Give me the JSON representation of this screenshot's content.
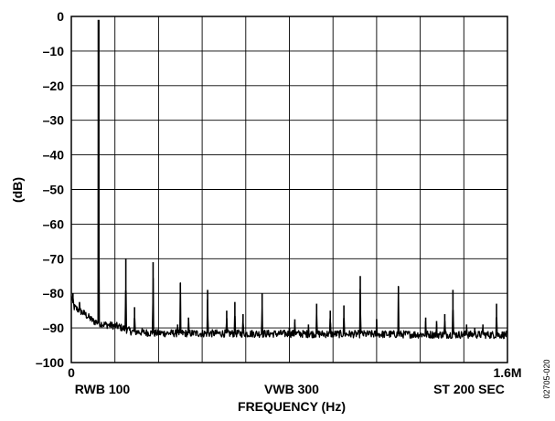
{
  "chart_data": {
    "type": "line",
    "title": "",
    "xlabel": "FREQUENCY (Hz)",
    "ylabel": "(dB)",
    "xlim": [
      0,
      1.6
    ],
    "ylim": [
      -100,
      0
    ],
    "grid": true,
    "y_ticks": [
      0,
      -10,
      -20,
      -30,
      -40,
      -50,
      -60,
      -70,
      -80,
      -90,
      -100
    ],
    "y_tick_labels": [
      "0",
      "–10",
      "–20",
      "–30",
      "–40",
      "–50",
      "–60",
      "–70",
      "–80",
      "–90",
      "–100"
    ],
    "x_tick_left": "0",
    "x_tick_right": "1.6M",
    "x_annotations": [
      "RWB 100",
      "VWB 300",
      "ST 200 SEC"
    ],
    "footnote": "02705-020",
    "noise_floor": [
      {
        "x": 0.0,
        "y": -81
      },
      {
        "x": 0.01,
        "y": -84
      },
      {
        "x": 0.03,
        "y": -85
      },
      {
        "x": 0.05,
        "y": -86
      },
      {
        "x": 0.08,
        "y": -88
      },
      {
        "x": 0.12,
        "y": -89
      },
      {
        "x": 0.17,
        "y": -89.5
      },
      {
        "x": 0.22,
        "y": -91
      },
      {
        "x": 0.3,
        "y": -91.5
      },
      {
        "x": 1.6,
        "y": -92
      }
    ],
    "spurs": [
      {
        "x": 0.006,
        "y": -80
      },
      {
        "x": 0.03,
        "y": -82.5
      },
      {
        "x": 0.1,
        "y": -1
      },
      {
        "x": 0.2,
        "y": -70
      },
      {
        "x": 0.232,
        "y": -84
      },
      {
        "x": 0.3,
        "y": -71
      },
      {
        "x": 0.39,
        "y": -89
      },
      {
        "x": 0.4,
        "y": -77
      },
      {
        "x": 0.43,
        "y": -87
      },
      {
        "x": 0.5,
        "y": -79
      },
      {
        "x": 0.57,
        "y": -85
      },
      {
        "x": 0.6,
        "y": -82.5
      },
      {
        "x": 0.63,
        "y": -86
      },
      {
        "x": 0.7,
        "y": -80
      },
      {
        "x": 0.8,
        "y": -90
      },
      {
        "x": 0.82,
        "y": -87.5
      },
      {
        "x": 0.87,
        "y": -89
      },
      {
        "x": 0.9,
        "y": -83
      },
      {
        "x": 0.95,
        "y": -85
      },
      {
        "x": 1.0,
        "y": -83.5
      },
      {
        "x": 1.06,
        "y": -75
      },
      {
        "x": 1.12,
        "y": -87.5
      },
      {
        "x": 1.2,
        "y": -78
      },
      {
        "x": 1.3,
        "y": -87
      },
      {
        "x": 1.34,
        "y": -88
      },
      {
        "x": 1.37,
        "y": -86
      },
      {
        "x": 1.4,
        "y": -79
      },
      {
        "x": 1.45,
        "y": -89
      },
      {
        "x": 1.48,
        "y": -90
      },
      {
        "x": 1.51,
        "y": -89
      },
      {
        "x": 1.56,
        "y": -83
      }
    ]
  }
}
